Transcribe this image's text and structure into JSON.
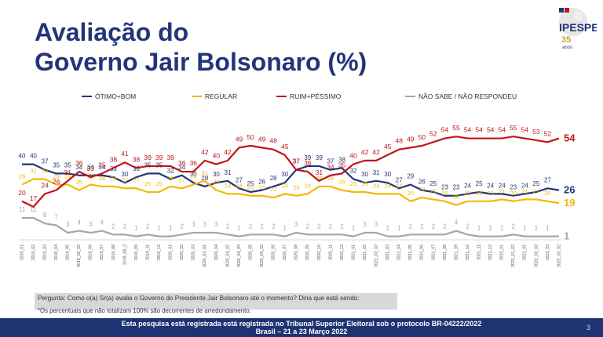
{
  "title_line1": "Avaliação do",
  "title_line2": "Governo Jair Bolsonaro (%)",
  "logo": {
    "name": "IPESPE",
    "anos_num": "35",
    "anos_word": "anos"
  },
  "legend": [
    {
      "label": "ÓTIMO+BOM",
      "color": "#23357a"
    },
    {
      "label": "REGULAR",
      "color": "#f5b800"
    },
    {
      "label": "RUIM+PÉSSIMO",
      "color": "#c0151b"
    },
    {
      "label": "NÃO SABE / NÃO RESPONDEU",
      "color": "#a6a6a6"
    }
  ],
  "chart_data": {
    "type": "line",
    "x": [
      "2019_01",
      "2019_02",
      "2019_03",
      "2019_04",
      "2019_05",
      "2019_05_02",
      "2019_06",
      "2019_07",
      "2019_08",
      "2019_08_2",
      "2019_09",
      "2019_11",
      "2019_12",
      "2020_01",
      "2020_02",
      "2020_03",
      "2020_03_02",
      "2020_04",
      "2020_04_02",
      "2020_04_03",
      "2020_05",
      "2020_05_02",
      "2020_06",
      "2020_07",
      "2020_08",
      "2020_09",
      "2020_10",
      "2020_11",
      "2020_12",
      "2021_01",
      "2021_02",
      "2021_02_02",
      "2021_03",
      "2021_04",
      "2021_05",
      "2021_06",
      "2021_07",
      "2021_08",
      "2021_09",
      "2021_10",
      "2021_11",
      "2021_12",
      "2022_01",
      "2022_01_02",
      "2022_02",
      "2022_02_02",
      "2022_03",
      "2022_03_02"
    ],
    "series": [
      {
        "name": "ÓTIMO+BOM",
        "color": "#23357a",
        "values": [
          40,
          40,
          37,
          35,
          35,
          34,
          34,
          34,
          33,
          30,
          33,
          35,
          35,
          32,
          34,
          30,
          28,
          30,
          31,
          27,
          25,
          26,
          28,
          30,
          37,
          39,
          39,
          37,
          38,
          32,
          30,
          31,
          30,
          27,
          29,
          26,
          25,
          23,
          23,
          24,
          25,
          24,
          24,
          23,
          24,
          25,
          27,
          26
        ],
        "end_label": "26"
      },
      {
        "name": "REGULAR",
        "color": "#f5b800",
        "values": [
          29,
          32,
          32,
          29,
          29,
          26,
          29,
          28,
          28,
          27,
          27,
          25,
          25,
          28,
          27,
          29,
          31,
          26,
          24,
          24,
          23,
          23,
          22,
          24,
          23,
          24,
          28,
          28,
          26,
          25,
          25,
          24,
          24,
          24,
          20,
          22,
          21,
          20,
          18,
          20,
          20,
          20,
          21,
          20,
          21,
          21,
          20,
          19
        ],
        "end_label": "19"
      },
      {
        "name": "RUIM+PÉSSIMO",
        "color": "#c0151b",
        "values": [
          20,
          17,
          24,
          26,
          31,
          36,
          33,
          35,
          38,
          41,
          38,
          39,
          39,
          39,
          36,
          36,
          42,
          40,
          42,
          49,
          50,
          49,
          48,
          45,
          37,
          36,
          31,
          34,
          35,
          40,
          42,
          42,
          45,
          48,
          49,
          50,
          52,
          54,
          55,
          54,
          54,
          54,
          54,
          55,
          54,
          53,
          52,
          54
        ],
        "end_label": "54"
      },
      {
        "name": "NÃO SABE / NÃO RESPONDEU",
        "color": "#a6a6a6",
        "values": [
          11,
          11,
          8,
          7,
          3,
          4,
          3,
          4,
          2,
          2,
          1,
          2,
          1,
          1,
          2,
          3,
          3,
          3,
          2,
          1,
          2,
          2,
          2,
          1,
          3,
          2,
          2,
          2,
          2,
          1,
          3,
          3,
          1,
          1,
          2,
          2,
          2,
          2,
          4,
          2,
          1,
          1,
          1,
          2,
          1,
          1,
          1,
          1
        ],
        "end_label": "1"
      }
    ]
  },
  "note_question": "Pergunta: Como o(a) Sr(a) avalia o Governo do Presidente Jair Bolsonaro até o momento? Diria que está sendo:",
  "note_rounding": "*Os percentuais que não totalizam 100% são decorrentes de arredondamento.",
  "footer_line1": "Esta pesquisa está registrada está registrada no Tribunal Superior Eleitoral sob o protocolo BR-04222/2022",
  "footer_line2": "Brasil – 21 a 23 Março 2022",
  "page_number": "3"
}
